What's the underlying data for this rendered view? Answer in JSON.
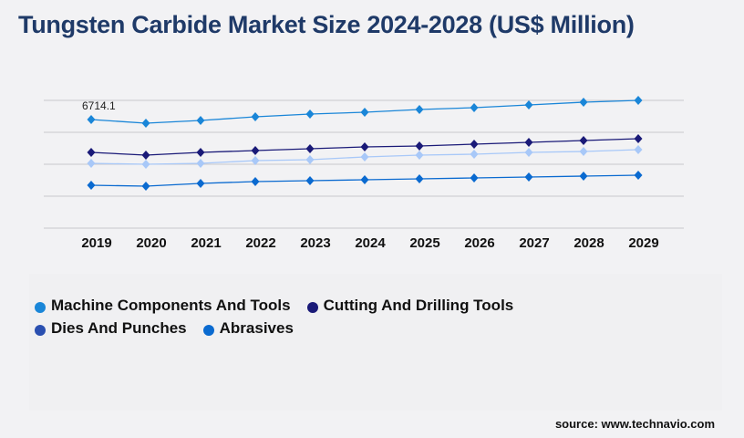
{
  "title": "Tungsten Carbide Market Size 2024-2028 (US$ Million)",
  "source": "source: www.technavio.com",
  "chart_data": {
    "type": "line",
    "title": "Tungsten Carbide Market Size 2024-2028 (US$ Million)",
    "xlabel": "",
    "ylabel": "",
    "x": [
      "2019",
      "2020",
      "2021",
      "2022",
      "2023",
      "2024",
      "2025",
      "2026",
      "2027",
      "2028",
      "2029"
    ],
    "ylim": [
      0,
      7899
    ],
    "grid": true,
    "legend_position": "bottom-left",
    "annotations": [
      {
        "series": 0,
        "index": 0,
        "text": "6714.1"
      }
    ],
    "series": [
      {
        "name": "Machine Components And Tools",
        "color": "#1a86d8",
        "values": [
          6714.1,
          6488,
          6658,
          6883,
          7053,
          7165,
          7335,
          7447,
          7617,
          7786,
          7899
        ]
      },
      {
        "name": "Cutting And Drilling Tools",
        "color": "#1a1a78",
        "values": [
          4683,
          4514,
          4683,
          4796,
          4909,
          5021,
          5078,
          5191,
          5303,
          5416,
          5529
        ]
      },
      {
        "name": "Dies And Punches",
        "color": "#a8c8f8",
        "legend_color": "#2a4fb0",
        "values": [
          4006,
          3949,
          4006,
          4175,
          4232,
          4401,
          4514,
          4570,
          4683,
          4739,
          4852
        ]
      },
      {
        "name": "Abrasives",
        "color": "#0a6ad0",
        "values": [
          2652,
          2595,
          2765,
          2877,
          2934,
          2990,
          3047,
          3103,
          3160,
          3216,
          3272
        ]
      }
    ]
  }
}
